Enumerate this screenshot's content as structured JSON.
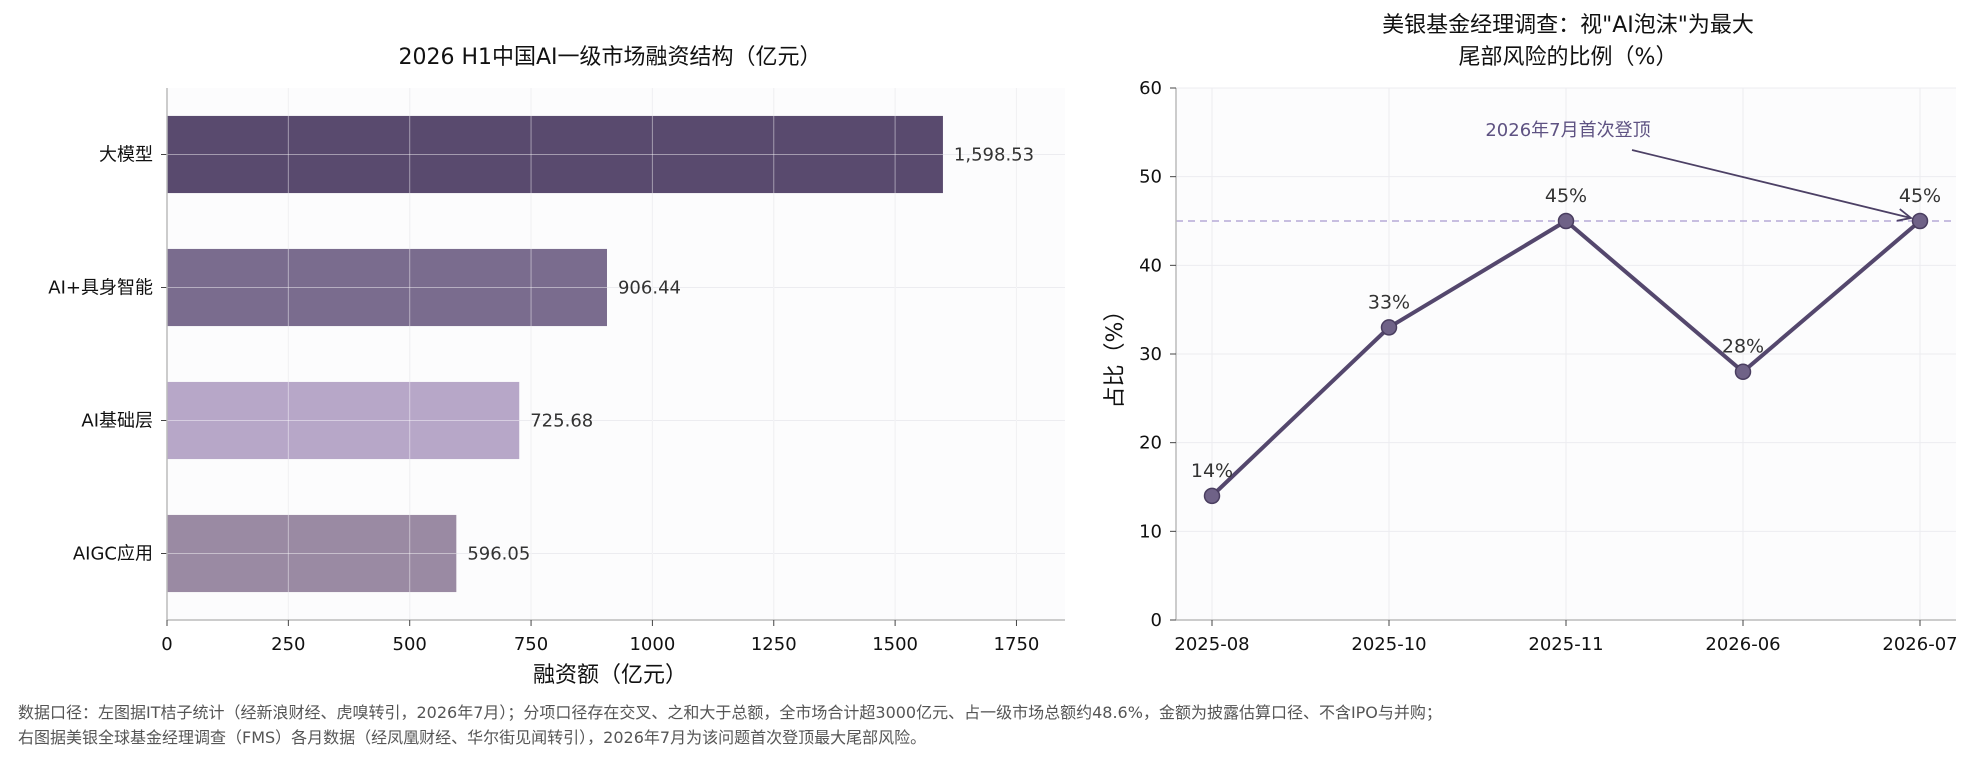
{
  "chart_data": [
    {
      "type": "bar",
      "orientation": "horizontal",
      "title": "2026 H1中国AI一级市场融资结构（亿元）",
      "xlabel": "融资额（亿元）",
      "ylabel": "",
      "categories": [
        "大模型",
        "AI+具身智能",
        "AI基础层",
        "AIGC应用"
      ],
      "values": [
        1598.53,
        906.44,
        725.68,
        596.05
      ],
      "value_labels": [
        "1,598.53",
        "906.44",
        "725.68",
        "596.05"
      ],
      "colors": [
        "#594a6e",
        "#7a6c8e",
        "#b7a7c8",
        "#9a8aa3"
      ],
      "xlim": [
        0,
        1850
      ],
      "xticks": [
        0,
        250,
        500,
        750,
        1000,
        1250,
        1500,
        1750
      ],
      "grid": true
    },
    {
      "type": "line",
      "title_lines": [
        "美银基金经理调查：视\"AI泡沫\"为最大",
        "尾部风险的比例（%）"
      ],
      "xlabel": "",
      "ylabel": "占比（%）",
      "x": [
        "2025-08",
        "2025-10",
        "2025-11",
        "2026-06",
        "2026-07"
      ],
      "values": [
        14,
        33,
        45,
        28,
        45
      ],
      "point_labels": [
        "14%",
        "33%",
        "45%",
        "28%",
        "45%"
      ],
      "ylim": [
        0,
        60
      ],
      "yticks": [
        0,
        10,
        20,
        30,
        40,
        50,
        60
      ],
      "reference_line": 45,
      "annotation": {
        "text": "2026年7月首次登顶",
        "target_index": 4
      },
      "line_color": "#54476d",
      "marker_color": "#6f6287",
      "grid": true
    }
  ],
  "footnotes": [
    "数据口径：左图据IT桔子统计（经新浪财经、虎嗅转引，2026年7月）；分项口径存在交叉、之和大于总额，全市场合计超3000亿元、占一级市场总额约48.6%，金额为披露估算口径、不含IPO与并购；",
    "右图据美银全球基金经理调查（FMS）各月数据（经凤凰财经、华尔街见闻转引），2026年7月为该问题首次登顶最大尾部风险。"
  ]
}
